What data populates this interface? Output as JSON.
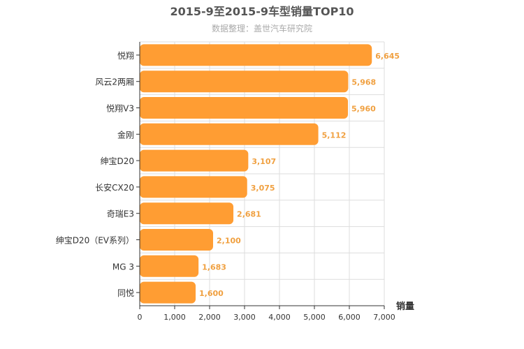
{
  "chart_data": {
    "type": "bar",
    "orientation": "horizontal",
    "title": "2015-9至2015-9车型销量TOP10",
    "subtitle": "数据整理：盖世汽车研究院",
    "categories": [
      "悦翔",
      "风云2两厢",
      "悦翔V3",
      "金刚",
      "绅宝D20",
      "长安CX20",
      "奇瑞E3",
      "绅宝D20（EV系列）",
      "MG 3",
      "同悦"
    ],
    "values": [
      6645,
      5968,
      5960,
      5112,
      3107,
      3075,
      2681,
      2100,
      1683,
      1600
    ],
    "value_labels": [
      "6,645",
      "5,968",
      "5,960",
      "5,112",
      "3,107",
      "3,075",
      "2,681",
      "2,100",
      "1,683",
      "1,600"
    ],
    "xlabel": "销量",
    "xlim": [
      0,
      7000
    ],
    "x_ticks": [
      0,
      1000,
      2000,
      3000,
      4000,
      5000,
      6000,
      7000
    ],
    "x_tick_labels": [
      "0",
      "1,000",
      "2,000",
      "3,000",
      "4,000",
      "5,000",
      "6,000",
      "7,000"
    ],
    "grid": true,
    "legend": "none",
    "colors": {
      "bar": "#ff9d33",
      "data_label": "#f0a040",
      "grid": "#dddddd",
      "axis": "#333333"
    }
  }
}
